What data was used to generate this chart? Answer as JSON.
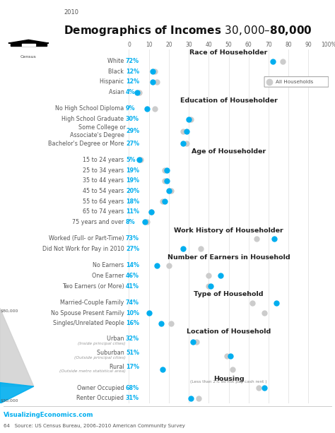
{
  "title": "Demographics of Incomes $30,000–$80,000",
  "year": "2010",
  "dot_color": "#00AEEF",
  "all_hh_color": "#CCCCCC",
  "x_ticks": [
    0,
    10,
    20,
    30,
    40,
    50,
    60,
    70,
    80,
    90,
    100
  ],
  "x_tick_labels": [
    "0",
    "10",
    "20",
    "30",
    "40",
    "50",
    "60",
    "70",
    "80",
    "90",
    "100%"
  ],
  "sections": [
    {
      "title": "Race of Householder",
      "title_suffix": "",
      "items": [
        {
          "label": "White",
          "pct": "72%",
          "value": 72,
          "all_hh": 77
        },
        {
          "label": "Black",
          "pct": "12%",
          "value": 12,
          "all_hh": 13
        },
        {
          "label": "Hispanic",
          "pct": "12%",
          "value": 12,
          "all_hh": 14
        },
        {
          "label": "Asian",
          "pct": "4%",
          "value": 4,
          "all_hh": 5
        }
      ]
    },
    {
      "title": "Education of Householder",
      "title_suffix": "",
      "items": [
        {
          "label": "No High School Diploma",
          "pct": "9%",
          "value": 9,
          "all_hh": 13
        },
        {
          "label": "High School Graduate",
          "pct": "30%",
          "value": 30,
          "all_hh": 31
        },
        {
          "label": "Some College or\nAssociate's Degree",
          "pct": "29%",
          "value": 29,
          "all_hh": 27
        },
        {
          "label": "Bachelor's Degree or More",
          "pct": "27%",
          "value": 27,
          "all_hh": 29
        }
      ]
    },
    {
      "title": "Age of Householder",
      "title_suffix": "",
      "items": [
        {
          "label": "15 to 24 years",
          "pct": "5%",
          "value": 5,
          "all_hh": 6
        },
        {
          "label": "25 to 34 years",
          "pct": "19%",
          "value": 19,
          "all_hh": 18
        },
        {
          "label": "35 to 44 years",
          "pct": "19%",
          "value": 19,
          "all_hh": 18
        },
        {
          "label": "45 to 54 years",
          "pct": "20%",
          "value": 20,
          "all_hh": 21
        },
        {
          "label": "55 to 64 years",
          "pct": "18%",
          "value": 18,
          "all_hh": 17
        },
        {
          "label": "65 to 74 years",
          "pct": "11%",
          "value": 11,
          "all_hh": 11
        },
        {
          "label": "75 years and over",
          "pct": "8%",
          "value": 8,
          "all_hh": 9
        }
      ]
    },
    {
      "title": "Work History of Householder",
      "title_suffix": "",
      "items": [
        {
          "label": "Worked (Full- or Part-Time)",
          "pct": "73%",
          "value": 73,
          "all_hh": 64
        },
        {
          "label": "Did Not Work for Pay in 2010",
          "pct": "27%",
          "value": 27,
          "all_hh": 36
        }
      ]
    },
    {
      "title": "Number of Earners in Household",
      "title_suffix": "",
      "items": [
        {
          "label": "No Earners",
          "pct": "14%",
          "value": 14,
          "all_hh": 20
        },
        {
          "label": "One Earner",
          "pct": "46%",
          "value": 46,
          "all_hh": 40
        },
        {
          "label": "Two Earners (or More)",
          "pct": "41%",
          "value": 41,
          "all_hh": 40
        }
      ]
    },
    {
      "title": "Type of Household",
      "title_suffix": "",
      "items": [
        {
          "label": "Married-Couple Family",
          "pct": "74%",
          "value": 74,
          "all_hh": 62
        },
        {
          "label": "No Spouse Present Family",
          "pct": "10%",
          "value": 10,
          "all_hh": 68
        },
        {
          "label": "Singles/Unrelated People",
          "pct": "16%",
          "value": 16,
          "all_hh": 21
        }
      ]
    },
    {
      "title": "Location of Household",
      "title_suffix": "",
      "items": [
        {
          "label": "Urban",
          "sublabel": "(Inside principal cities)",
          "pct": "32%",
          "value": 32,
          "all_hh": 34
        },
        {
          "label": "Suburban",
          "sublabel": "(Outside principal cities)",
          "pct": "51%",
          "value": 51,
          "all_hh": 49
        },
        {
          "label": "Rural",
          "sublabel": "(Outside metro statistical area)",
          "pct": "17%",
          "value": 17,
          "all_hh": 52
        }
      ]
    },
    {
      "title": "Housing",
      "title_suffix": "(Less than 2% do not pay cash rent )",
      "items": [
        {
          "label": "Owner Occupied",
          "sublabel": "",
          "pct": "68%",
          "value": 68,
          "all_hh": 65
        },
        {
          "label": "Renter Occupied",
          "sublabel": "",
          "pct": "31%",
          "value": 31,
          "all_hh": 35
        }
      ]
    }
  ],
  "legend_label": "All Households",
  "footer_url": "VisualizingEconomics.com",
  "footer_page": "64",
  "footer_source": "Source: US Census Bureau, 2006–2010 American Community Survey"
}
